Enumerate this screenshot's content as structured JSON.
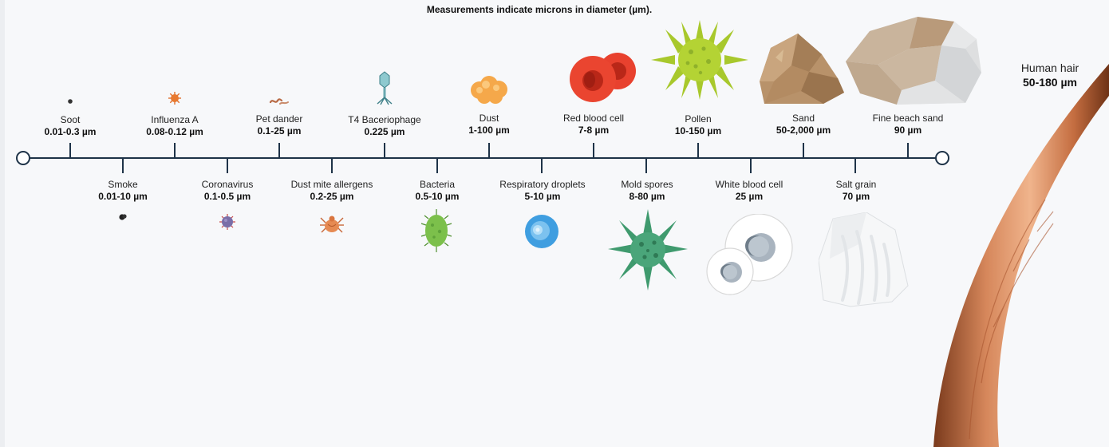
{
  "headline": "Measurements indicate microns in diameter (µm).",
  "particles_top": [
    {
      "name": "Soot",
      "size": "0.01-0.3 µm",
      "icon": "soot-icon"
    },
    {
      "name": "Influenza A",
      "size": "0.08-0.12 µm",
      "icon": "influenza-virus-icon"
    },
    {
      "name": "Pet dander",
      "size": "0.1-25 µm",
      "icon": "pet-dander-icon"
    },
    {
      "name": "T4 Baceriophage",
      "size": "0.225 µm",
      "icon": "bacteriophage-icon"
    },
    {
      "name": "Dust",
      "size": "1-100 µm",
      "icon": "dust-icon"
    },
    {
      "name": "Red blood cell",
      "size": "7-8 µm",
      "icon": "red-blood-cell-icon"
    },
    {
      "name": "Pollen",
      "size": "10-150 µm",
      "icon": "pollen-icon"
    },
    {
      "name": "Sand",
      "size": "50-2,000 µm",
      "icon": "sand-icon"
    },
    {
      "name": "Fine beach sand",
      "size": "90 µm",
      "icon": "fine-beach-sand-icon"
    }
  ],
  "particles_bottom": [
    {
      "name": "Smoke",
      "size": "0.01-10 µm",
      "icon": "smoke-icon"
    },
    {
      "name": "Coronavirus",
      "size": "0.1-0.5 µm",
      "icon": "coronavirus-icon"
    },
    {
      "name": "Dust mite allergens",
      "size": "0.2-25 µm",
      "icon": "dust-mite-icon"
    },
    {
      "name": "Bacteria",
      "size": "0.5-10 µm",
      "icon": "bacteria-icon"
    },
    {
      "name": "Respiratory droplets",
      "size": "5-10 µm",
      "icon": "respiratory-droplet-icon"
    },
    {
      "name": "Mold spores",
      "size": "8-80 µm",
      "icon": "mold-spore-icon"
    },
    {
      "name": "White blood cell",
      "size": "25 µm",
      "icon": "white-blood-cell-icon"
    },
    {
      "name": "Salt grain",
      "size": "70 µm",
      "icon": "salt-grain-icon"
    }
  ],
  "human_hair": {
    "name": "Human hair",
    "size": "50-180 µm",
    "icon": "human-hair-icon"
  },
  "colors": {
    "axis": "#1e3348",
    "hair": "#c8734a",
    "red_cell": "#e8412e",
    "pollen": "#b4d334",
    "mold": "#3f9a6e",
    "bacteria": "#7cc04b",
    "droplet": "#4aa8e0",
    "dust": "#f5a84a",
    "sand": "#b8926a"
  }
}
